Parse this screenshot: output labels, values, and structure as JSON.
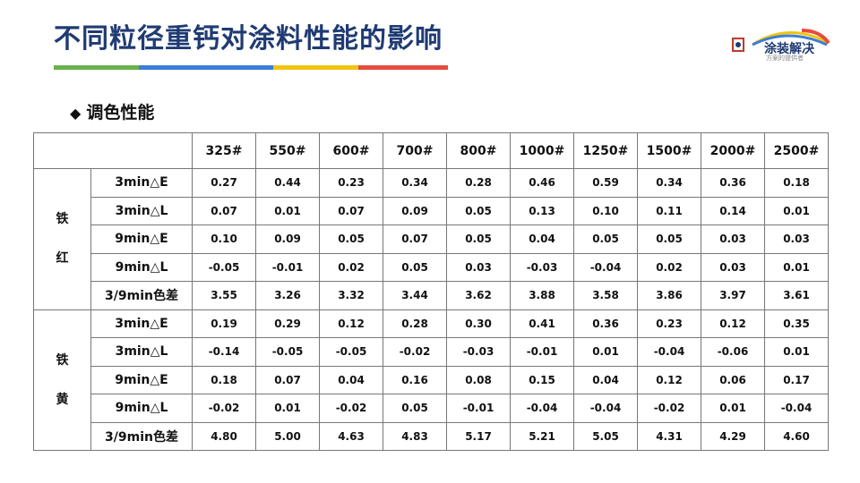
{
  "title": "不同粒径重钙对涂料性能的影响",
  "accent_bar_colors": [
    "#6ab04c",
    "#3b7dd8",
    "#f1c40f",
    "#e74c3c"
  ],
  "logo": {
    "name": "涂装解决",
    "tagline": "方案的提供者"
  },
  "section": {
    "bullet": "◆",
    "label": "调色性能"
  },
  "table": {
    "columns": [
      "325#",
      "550#",
      "600#",
      "700#",
      "800#",
      "1000#",
      "1250#",
      "1500#",
      "2000#",
      "2500#"
    ],
    "groups": [
      {
        "name_line1": "铁",
        "name_line2": "红",
        "rows": [
          {
            "metric": "3min△E",
            "values": [
              "0.27",
              "0.44",
              "0.23",
              "0.34",
              "0.28",
              "0.46",
              "0.59",
              "0.34",
              "0.36",
              "0.18"
            ]
          },
          {
            "metric": "3min△L",
            "values": [
              "0.07",
              "0.01",
              "0.07",
              "0.09",
              "0.05",
              "0.13",
              "0.10",
              "0.11",
              "0.14",
              "0.01"
            ]
          },
          {
            "metric": "9min△E",
            "values": [
              "0.10",
              "0.09",
              "0.05",
              "0.07",
              "0.05",
              "0.04",
              "0.05",
              "0.05",
              "0.03",
              "0.03"
            ]
          },
          {
            "metric": "9min△L",
            "values": [
              "-0.05",
              "-0.01",
              "0.02",
              "0.05",
              "0.03",
              "-0.03",
              "-0.04",
              "0.02",
              "0.03",
              "0.01"
            ]
          },
          {
            "metric": "3/9min色差",
            "values": [
              "3.55",
              "3.26",
              "3.32",
              "3.44",
              "3.62",
              "3.88",
              "3.58",
              "3.86",
              "3.97",
              "3.61"
            ]
          }
        ]
      },
      {
        "name_line1": "铁",
        "name_line2": "黄",
        "rows": [
          {
            "metric": "3min△E",
            "values": [
              "0.19",
              "0.29",
              "0.12",
              "0.28",
              "0.30",
              "0.41",
              "0.36",
              "0.23",
              "0.12",
              "0.35"
            ]
          },
          {
            "metric": "3min△L",
            "values": [
              "-0.14",
              "-0.05",
              "-0.05",
              "-0.02",
              "-0.03",
              "-0.01",
              "0.01",
              "-0.04",
              "-0.06",
              "0.01"
            ]
          },
          {
            "metric": "9min△E",
            "values": [
              "0.18",
              "0.07",
              "0.04",
              "0.16",
              "0.08",
              "0.15",
              "0.04",
              "0.12",
              "0.06",
              "0.17"
            ]
          },
          {
            "metric": "9min△L",
            "values": [
              "-0.02",
              "0.01",
              "-0.02",
              "0.05",
              "-0.01",
              "-0.04",
              "-0.04",
              "-0.02",
              "0.01",
              "-0.04"
            ]
          },
          {
            "metric": "3/9min色差",
            "values": [
              "4.80",
              "5.00",
              "4.63",
              "4.83",
              "5.17",
              "5.21",
              "5.05",
              "4.31",
              "4.29",
              "4.60"
            ]
          }
        ]
      }
    ]
  }
}
